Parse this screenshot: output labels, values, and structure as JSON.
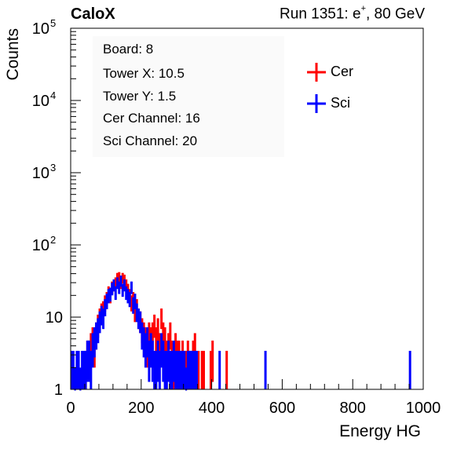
{
  "header": {
    "brand": "CaloX",
    "run_prefix": "Run 1351: e",
    "run_sup": "+",
    "run_suffix": ", 80 GeV"
  },
  "info": {
    "board": "Board: 8",
    "tower_x": "Tower X: 10.5",
    "tower_y": "Tower Y: 1.5",
    "cer_channel": "Cer Channel: 16",
    "sci_channel": "Sci Channel: 20"
  },
  "colors": {
    "cer": "#ff0000",
    "sci": "#0000ff",
    "axis": "#000000"
  },
  "chart_data": {
    "type": "line",
    "title": "",
    "xlabel": "Energy HG",
    "ylabel": "Counts",
    "xlim": [
      0,
      1000
    ],
    "ylim": [
      1,
      100000
    ],
    "y_scale": "log",
    "grid": false,
    "legend_position": "top-right",
    "x_ticks": [
      "0",
      "200",
      "400",
      "600",
      "800",
      "1000"
    ],
    "y_ticks": [
      {
        "base": "1",
        "exp": ""
      },
      {
        "base": "10",
        "exp": ""
      },
      {
        "base": "10",
        "exp": "2"
      },
      {
        "base": "10",
        "exp": "3"
      },
      {
        "base": "10",
        "exp": "4"
      },
      {
        "base": "10",
        "exp": "5"
      }
    ],
    "bin_width": 5,
    "series": [
      {
        "name": "Cer",
        "color": "#ff0000",
        "x": [
          40,
          45,
          50,
          55,
          60,
          65,
          70,
          75,
          80,
          85,
          90,
          95,
          100,
          105,
          110,
          115,
          120,
          125,
          130,
          135,
          140,
          145,
          150,
          155,
          160,
          165,
          170,
          175,
          180,
          185,
          190,
          195,
          200,
          205,
          210,
          215,
          220,
          225,
          230,
          235,
          240,
          245,
          250,
          255,
          260,
          265,
          270,
          275,
          280,
          285,
          290,
          295,
          300,
          305,
          310,
          315,
          320,
          325,
          330,
          335,
          340,
          345,
          350,
          360,
          370,
          375,
          395,
          400,
          440
        ],
        "values": [
          2,
          3,
          3,
          4,
          5,
          4,
          6,
          8,
          10,
          12,
          13,
          16,
          18,
          22,
          20,
          26,
          28,
          30,
          35,
          36,
          30,
          35,
          33,
          28,
          24,
          20,
          16,
          18,
          12,
          14,
          10,
          9,
          7,
          6,
          5,
          4,
          6,
          5,
          6,
          8,
          5,
          7,
          4,
          10,
          6,
          5,
          3,
          4,
          6,
          3,
          2,
          4,
          3,
          3,
          2,
          3,
          2,
          2,
          3,
          2,
          2,
          3,
          4,
          2,
          2,
          2,
          2,
          3,
          2
        ]
      },
      {
        "name": "Sci",
        "color": "#0000ff",
        "x": [
          0,
          5,
          10,
          15,
          20,
          25,
          30,
          35,
          40,
          45,
          50,
          55,
          60,
          65,
          70,
          75,
          80,
          85,
          90,
          95,
          100,
          105,
          110,
          115,
          120,
          125,
          130,
          135,
          140,
          145,
          150,
          155,
          160,
          165,
          170,
          175,
          180,
          185,
          190,
          195,
          200,
          205,
          210,
          215,
          220,
          225,
          230,
          235,
          240,
          245,
          250,
          255,
          260,
          265,
          270,
          275,
          280,
          285,
          290,
          295,
          300,
          305,
          310,
          315,
          320,
          325,
          330,
          335,
          340,
          345,
          350,
          355,
          420,
          550,
          960
        ],
        "values": [
          2,
          2,
          1,
          2,
          2,
          1,
          2,
          2,
          2,
          3,
          3,
          2,
          4,
          5,
          6,
          7,
          9,
          11,
          10,
          14,
          17,
          20,
          21,
          25,
          28,
          22,
          30,
          26,
          32,
          24,
          28,
          22,
          20,
          18,
          26,
          15,
          17,
          12,
          10,
          9,
          6,
          5,
          4,
          5,
          3,
          4,
          3,
          2,
          2,
          3,
          2,
          4,
          3,
          2,
          2,
          3,
          2,
          2,
          3,
          2,
          2,
          2,
          2,
          2,
          2,
          1,
          2,
          2,
          2,
          2,
          2,
          2,
          2,
          2,
          2
        ]
      }
    ]
  }
}
